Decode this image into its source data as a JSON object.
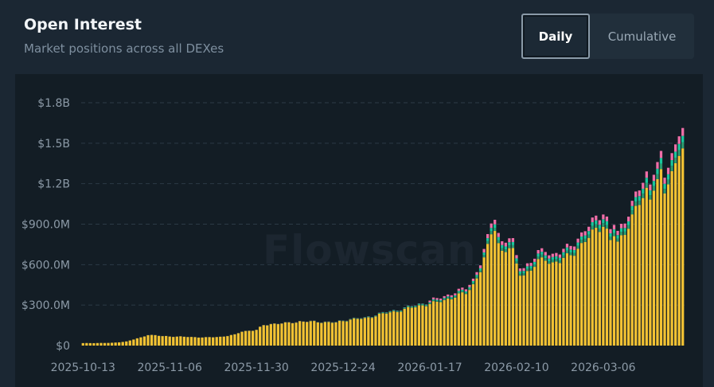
{
  "header": {
    "title": "Open Interest",
    "subtitle": "Market positions across all DEXes"
  },
  "toggle": {
    "daily_label": "Daily",
    "cumulative_label": "Cumulative",
    "selected": "Daily"
  },
  "watermark": "Flowscan",
  "colors": {
    "background": "#1b2733",
    "plot_background": "#131d25",
    "grid": "#2c3a46",
    "tick_text": "#8c9aa7",
    "series": [
      "#f2c233",
      "#2c9a6f",
      "#18c79c",
      "#f06ea8"
    ]
  },
  "chart_data": {
    "type": "bar",
    "stacked": true,
    "grid": true,
    "legend": "none",
    "ylim": [
      0,
      1800000000
    ],
    "y_ticks": [
      0,
      300000000,
      600000000,
      900000000,
      1200000000,
      1500000000,
      1800000000
    ],
    "y_tick_labels": [
      "$0",
      "$300.0M",
      "$600.0M",
      "$900.0M",
      "$1.2B",
      "$1.5B",
      "$1.8B"
    ],
    "x_tick_labels": [
      "2025-10-13",
      "2025-11-06",
      "2025-11-30",
      "2025-12-24",
      "2026-01-17",
      "2026-02-10",
      "2026-03-06"
    ],
    "x_tick_indices": [
      0,
      24,
      48,
      72,
      96,
      120,
      144
    ],
    "anchors": [
      [
        0,
        18
      ],
      [
        8,
        20
      ],
      [
        12,
        30
      ],
      [
        16,
        60
      ],
      [
        18,
        80
      ],
      [
        22,
        70
      ],
      [
        28,
        65
      ],
      [
        34,
        60
      ],
      [
        38,
        65
      ],
      [
        42,
        80
      ],
      [
        44,
        105
      ],
      [
        48,
        115
      ],
      [
        50,
        150
      ],
      [
        52,
        160
      ],
      [
        56,
        165
      ],
      [
        60,
        178
      ],
      [
        66,
        175
      ],
      [
        70,
        170
      ],
      [
        74,
        195
      ],
      [
        78,
        200
      ],
      [
        82,
        230
      ],
      [
        86,
        250
      ],
      [
        90,
        275
      ],
      [
        94,
        300
      ],
      [
        98,
        320
      ],
      [
        102,
        355
      ],
      [
        106,
        390
      ],
      [
        108,
        450
      ],
      [
        110,
        560
      ],
      [
        112,
        720
      ],
      [
        113,
        830
      ],
      [
        114,
        880
      ],
      [
        115,
        760
      ],
      [
        116,
        700
      ],
      [
        118,
        720
      ],
      [
        119,
        690
      ],
      [
        120,
        600
      ],
      [
        121,
        540
      ],
      [
        122,
        530
      ],
      [
        124,
        560
      ],
      [
        126,
        620
      ],
      [
        128,
        650
      ],
      [
        130,
        610
      ],
      [
        132,
        620
      ],
      [
        134,
        660
      ],
      [
        136,
        700
      ],
      [
        138,
        740
      ],
      [
        140,
        800
      ],
      [
        142,
        870
      ],
      [
        144,
        900
      ],
      [
        145,
        840
      ],
      [
        146,
        770
      ],
      [
        147,
        820
      ],
      [
        148,
        760
      ],
      [
        150,
        850
      ],
      [
        152,
        950
      ],
      [
        154,
        1050
      ],
      [
        156,
        1150
      ],
      [
        157,
        1100
      ],
      [
        158,
        1200
      ],
      [
        160,
        1250
      ],
      [
        161,
        1120
      ],
      [
        162,
        1220
      ],
      [
        164,
        1350
      ],
      [
        165,
        1460
      ],
      [
        166,
        1480
      ]
    ],
    "anchor_units": "$M, yellow-series level by day index; top series segments are proportional"
  }
}
